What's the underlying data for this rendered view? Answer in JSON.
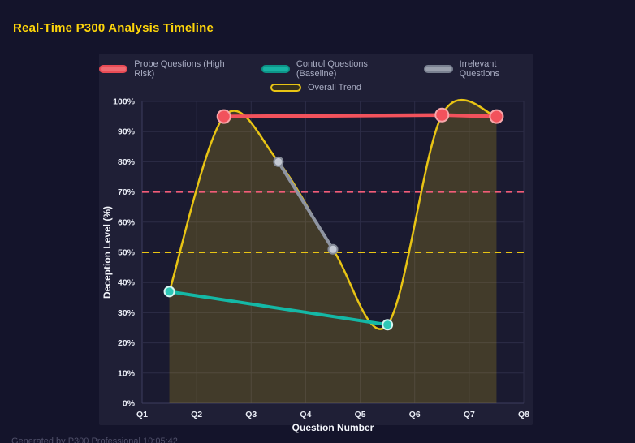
{
  "header": {
    "title": "Real-Time P300 Analysis Timeline"
  },
  "footer": {
    "text": "Generated by P300 Professional   10:05:42"
  },
  "colors": {
    "page_bg": "#14142b",
    "panel_bg": "#1f1f36",
    "plot_bg": "#1a1a30",
    "grid": "#2c2c47",
    "axis": "#3c3c5e",
    "title": "#ffd60a",
    "legend_text": "#a9adc3",
    "footer_text": "#50506a"
  },
  "chart_data": {
    "type": "line",
    "title": "Real-Time P300 Analysis Timeline",
    "xlabel": "Question Number",
    "ylabel": "Deception Level (%)",
    "x_range": [
      1,
      8
    ],
    "x_ticks": [
      "Q1",
      "Q2",
      "Q3",
      "Q4",
      "Q5",
      "Q6",
      "Q7",
      "Q8"
    ],
    "ylim": [
      0,
      100
    ],
    "y_ticks": [
      "0%",
      "10%",
      "20%",
      "30%",
      "40%",
      "50%",
      "60%",
      "70%",
      "80%",
      "90%",
      "100%"
    ],
    "grid": true,
    "legend_position": "top",
    "series": [
      {
        "name": "Probe Questions (High Risk)",
        "role": "line",
        "color": "#f2525c",
        "line_width": 4.5,
        "x": [
          2.5,
          6.5,
          7.5
        ],
        "y": [
          95,
          95.5,
          95
        ],
        "marker": {
          "r": 8,
          "fill": "#f2525c",
          "stroke": "#f7a6aa",
          "stroke_width": 2
        },
        "swatch_fill": "#ef6a72",
        "swatch_border": "#e84b55"
      },
      {
        "name": "Control Questions (Baseline)",
        "role": "line",
        "color": "#14b8a6",
        "line_width": 4,
        "x": [
          1.5,
          5.5
        ],
        "y": [
          37,
          26
        ],
        "marker": {
          "r": 6,
          "fill": "#2dc7b6",
          "stroke": "#d6f5f1",
          "stroke_width": 2
        },
        "swatch_fill": "#17b3a3",
        "swatch_border": "#0d9488"
      },
      {
        "name": "Irrelevant Questions",
        "role": "line",
        "color": "#8e94a1",
        "line_width": 4,
        "x": [
          3.5,
          4.5
        ],
        "y": [
          80,
          51
        ],
        "marker": {
          "r": 5.5,
          "fill": "#c3c8d2",
          "stroke": "#858b98",
          "stroke_width": 2
        },
        "swatch_fill": "#9aa0ad",
        "swatch_border": "#798090"
      },
      {
        "name": "Overall Trend",
        "role": "trend",
        "color": "#e8c414",
        "line_width": 2.5,
        "smooth": true,
        "x": [
          1.5,
          2.5,
          3.5,
          4.5,
          5.5,
          6.5,
          7.5
        ],
        "y": [
          37,
          95,
          80,
          51,
          26,
          95.5,
          95
        ],
        "fill": "rgba(232,196,20,0.20)",
        "marker": {
          "r": 0
        },
        "swatch_fill": "#35301d",
        "swatch_border": "#e8c414"
      }
    ],
    "thresholds": [
      {
        "name": "high-risk-threshold",
        "value": 70,
        "color": "#f25c78",
        "dash": "8 6",
        "width": 2
      },
      {
        "name": "baseline-threshold",
        "value": 50,
        "color": "#e8c414",
        "dash": "8 6",
        "width": 2
      }
    ]
  }
}
